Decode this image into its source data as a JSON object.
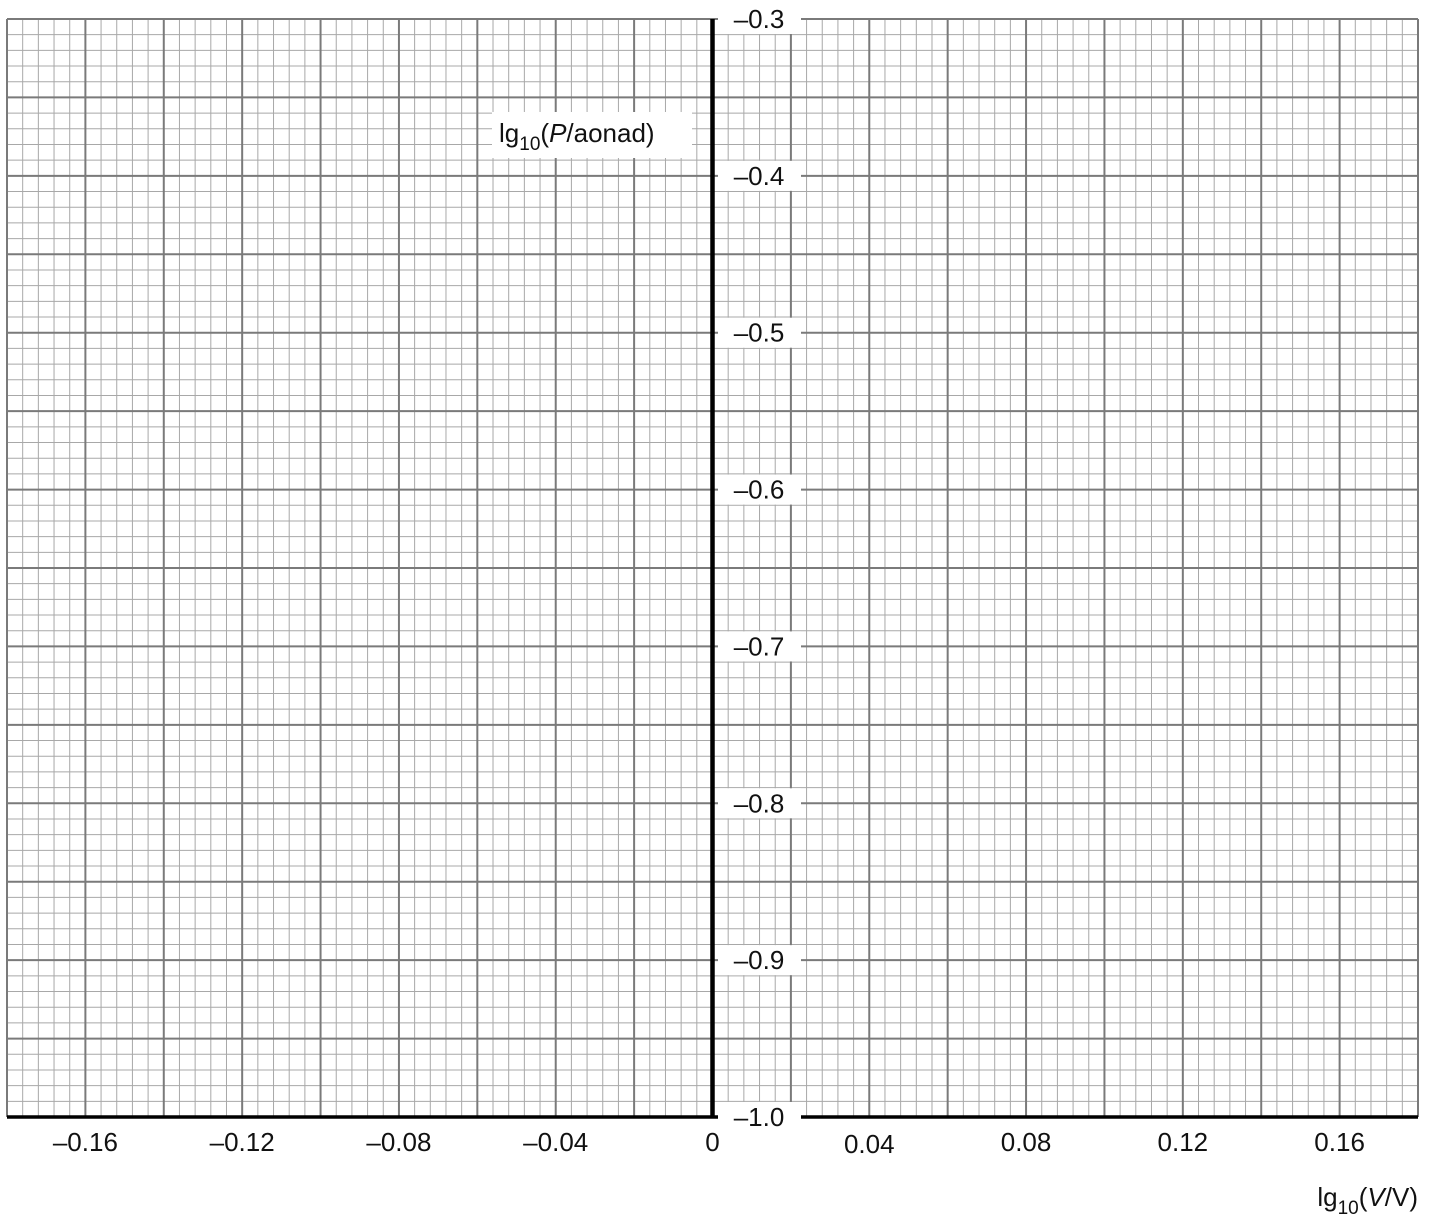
{
  "chart_data": {
    "type": "scatter",
    "title": "",
    "x_axis": {
      "label": {
        "prefix": "lg",
        "sub": "10",
        "open": "(",
        "var": "V",
        "rest": "/V)"
      },
      "range": [
        -0.18,
        0.18
      ],
      "ticks": [
        -0.16,
        -0.12,
        -0.08,
        -0.04,
        0,
        0.04,
        0.08,
        0.12,
        0.16
      ],
      "tick_labels": [
        "–0.16",
        "–0.12",
        "–0.08",
        "–0.04",
        "0",
        "0.04",
        "0.08",
        "0.12",
        "0.16"
      ],
      "major_step": 0.02,
      "minor_step": 0.004
    },
    "y_axis": {
      "label": {
        "prefix": "lg",
        "sub": "10",
        "open": "(",
        "var": "P",
        "rest": "/aonad)"
      },
      "range": [
        -1.0,
        -0.3
      ],
      "ticks": [
        -0.3,
        -0.4,
        -0.5,
        -0.6,
        -0.7,
        -0.8,
        -0.9,
        -1.0
      ],
      "tick_labels": [
        "–0.3",
        "–0.4",
        "–0.5",
        "–0.6",
        "–0.7",
        "–0.8",
        "–0.9",
        "–1.0"
      ],
      "major_step": 0.05,
      "minor_step": 0.01
    },
    "grid": true,
    "series": []
  }
}
